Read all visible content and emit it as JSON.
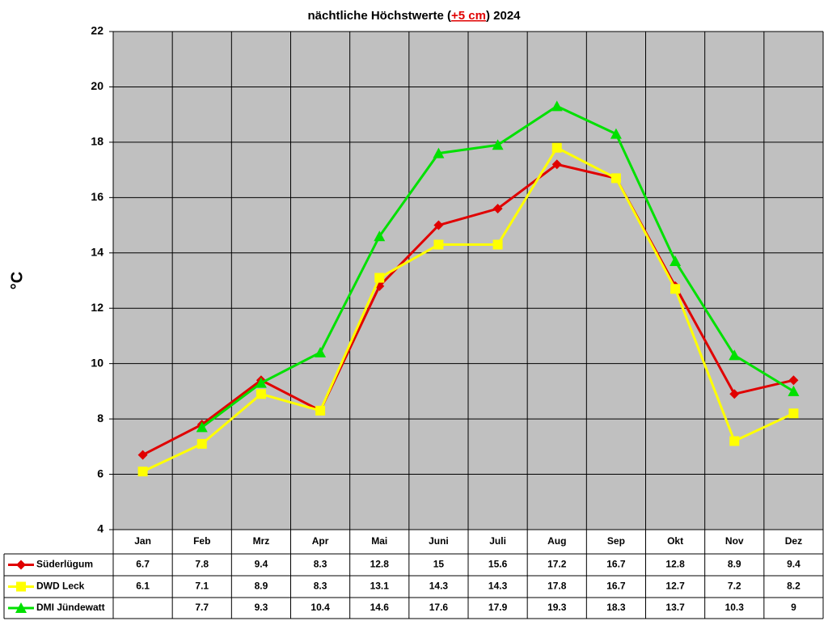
{
  "chart_data": {
    "type": "line",
    "title": [
      "nächtliche Höchstwerte (",
      "+5 cm",
      ") 2024"
    ],
    "y_label": "°C",
    "categories": [
      "Jan",
      "Feb",
      "Mrz",
      "Apr",
      "Mai",
      "Juni",
      "Juli",
      "Aug",
      "Sep",
      "Okt",
      "Nov",
      "Dez"
    ],
    "series": [
      {
        "name": "Süderlügum",
        "color": "#e00000",
        "marker": "diamond",
        "values": [
          6.7,
          7.8,
          9.4,
          8.3,
          12.8,
          15,
          15.6,
          17.2,
          16.7,
          12.8,
          8.9,
          9.4
        ]
      },
      {
        "name": "DWD Leck",
        "color": "#ffff00",
        "marker": "square",
        "values": [
          6.1,
          7.1,
          8.9,
          8.3,
          13.1,
          14.3,
          14.3,
          17.8,
          16.7,
          12.7,
          7.2,
          8.2
        ]
      },
      {
        "name": "DMI Jündewatt",
        "color": "#00e000",
        "marker": "triangle",
        "values": [
          null,
          7.7,
          9.3,
          10.4,
          14.6,
          17.6,
          17.9,
          19.3,
          18.3,
          13.7,
          10.3,
          9
        ]
      }
    ],
    "ylim": [
      4,
      22
    ],
    "yticks": [
      4,
      6,
      8,
      10,
      12,
      14,
      16,
      18,
      20,
      22
    ],
    "grid": true
  }
}
